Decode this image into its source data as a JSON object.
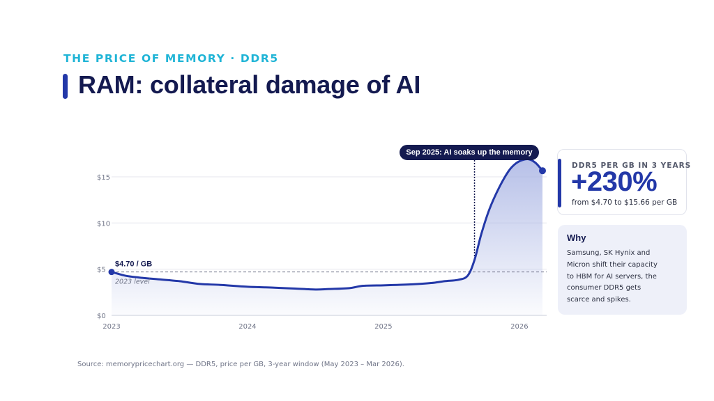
{
  "kicker": "THE PRICE OF MEMORY · DDR5",
  "title": "RAM: collateral damage of AI",
  "callout": "Sep 2025: AI soaks up the memory",
  "kpi": {
    "label": "DDR5 PER GB IN 3 YEARS",
    "value": "+230%",
    "sub": "from $4.70 to $15.66 per GB"
  },
  "why": {
    "title": "Why",
    "body": "Samsung, SK Hynix and Micron shift their capacity to HBM for AI servers, the consumer DDR5 gets scarce and spikes."
  },
  "source": "Source: memorypricechart.org — DDR5, price per GB, 3-year window (May 2023 – Mar 2026).",
  "colors": {
    "line": "#2338a8",
    "fill": "#b9c3e8",
    "kicker": "#1fb4d6",
    "title": "#141a50",
    "callout_bg": "#141a50"
  },
  "chart_data": {
    "type": "area",
    "x_unit": "year",
    "x_start": 2023.0,
    "x_end": 2026.17,
    "ylim": [
      0,
      17.5
    ],
    "yticks": [
      0,
      5,
      10,
      15
    ],
    "ytick_labels": [
      "$0",
      "$5",
      "$10",
      "$15"
    ],
    "xticks": [
      2023,
      2024,
      2025,
      2026
    ],
    "xtick_labels": [
      "2023",
      "2024",
      "2025",
      "2026"
    ],
    "grid": true,
    "reference_line": {
      "y": 4.7,
      "label": "2023 level",
      "start_label": "$4.70 / GB"
    },
    "event_marker": {
      "x": 2025.67,
      "label": "Sep 2025: AI soaks up the memory"
    },
    "series": [
      {
        "x": [
          2023.0,
          2023.1,
          2023.2,
          2023.35,
          2023.5,
          2023.65,
          2023.8,
          2024.0,
          2024.2,
          2024.35,
          2024.5,
          2024.6,
          2024.75,
          2024.85,
          2025.0,
          2025.1,
          2025.2,
          2025.35,
          2025.45,
          2025.55,
          2025.62,
          2025.67,
          2025.72,
          2025.78,
          2025.85,
          2025.92,
          2025.97,
          2026.02,
          2026.07,
          2026.12,
          2026.17
        ],
        "y": [
          4.7,
          4.3,
          4.1,
          3.9,
          3.7,
          3.4,
          3.3,
          3.1,
          3.0,
          2.9,
          2.8,
          2.85,
          2.95,
          3.2,
          3.25,
          3.3,
          3.35,
          3.5,
          3.7,
          3.85,
          4.3,
          6.0,
          8.8,
          11.5,
          13.8,
          15.6,
          16.4,
          16.8,
          16.9,
          16.5,
          15.66
        ]
      }
    ]
  }
}
